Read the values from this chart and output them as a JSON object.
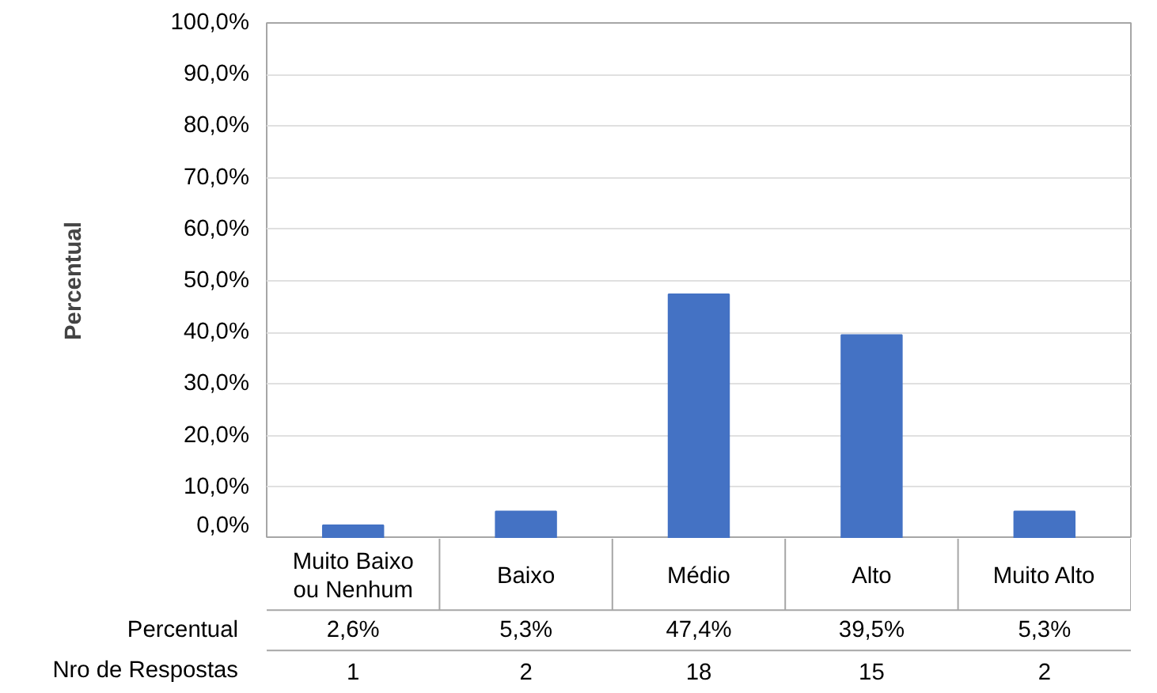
{
  "chart_data": {
    "type": "bar",
    "ylabel": "Percentual",
    "categories": [
      "Muito Baixo ou Nenhum",
      "Baixo",
      "Médio",
      "Alto",
      "Muito Alto"
    ],
    "series": [
      {
        "name": "Percentual",
        "color": "#4472c4",
        "values": [
          2.6,
          5.3,
          47.4,
          39.5,
          5.3
        ]
      }
    ],
    "value_labels": [
      "2,6%",
      "5,3%",
      "47,4%",
      "39,5%",
      "5,3%"
    ],
    "ylim": [
      0,
      100
    ],
    "yticks": [
      {
        "value": 0,
        "label": "0,0%"
      },
      {
        "value": 10,
        "label": "10,0%"
      },
      {
        "value": 20,
        "label": "20,0%"
      },
      {
        "value": 30,
        "label": "30,0%"
      },
      {
        "value": 40,
        "label": "40,0%"
      },
      {
        "value": 50,
        "label": "50,0%"
      },
      {
        "value": 60,
        "label": "60,0%"
      },
      {
        "value": 70,
        "label": "70,0%"
      },
      {
        "value": 80,
        "label": "80,0%"
      },
      {
        "value": 90,
        "label": "90,0%"
      },
      {
        "value": 100,
        "label": "100,0%"
      }
    ],
    "grid": "y",
    "annotations": [
      "Nro de Respostas",
      "1",
      "2",
      "18",
      "15",
      "2"
    ]
  }
}
